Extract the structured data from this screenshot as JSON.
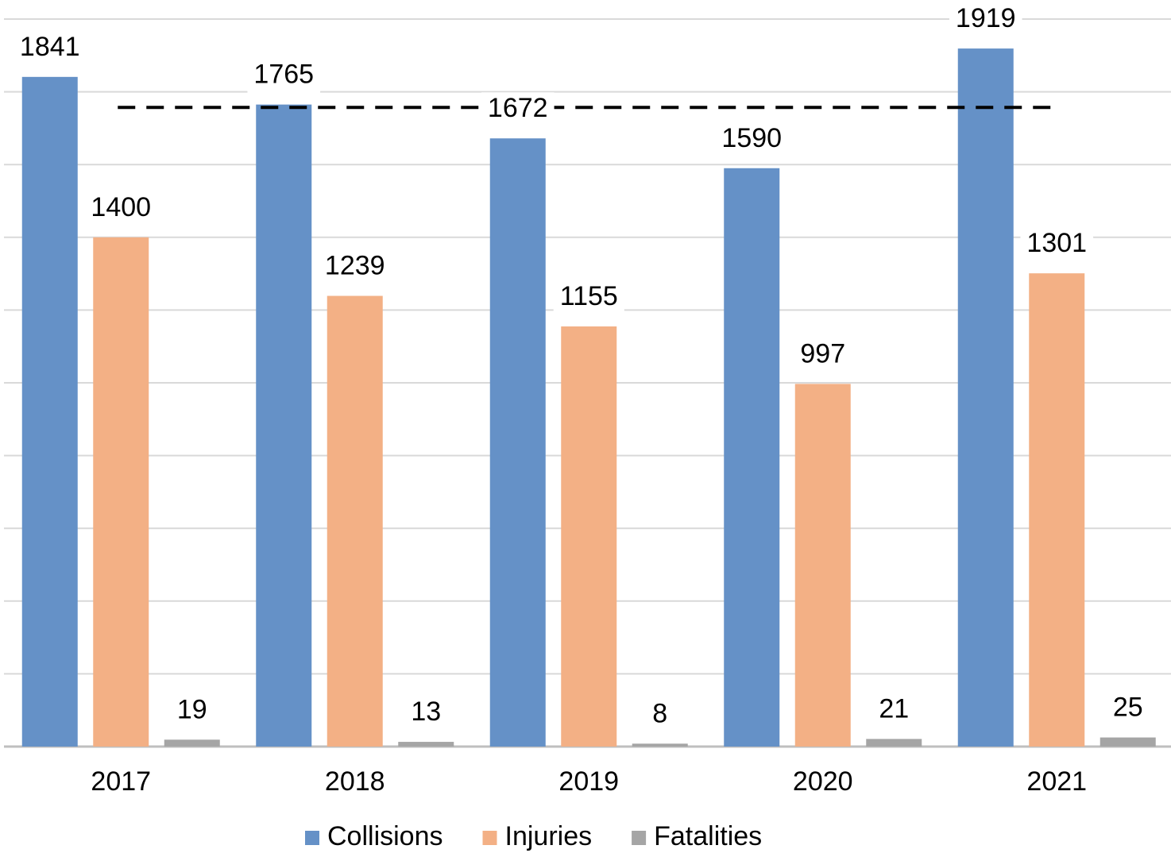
{
  "chart_data": {
    "type": "bar",
    "categories": [
      "2017",
      "2018",
      "2019",
      "2020",
      "2021"
    ],
    "series": [
      {
        "name": "Collisions",
        "color": "#6591c7",
        "values": [
          1841,
          1765,
          1672,
          1590,
          1919
        ]
      },
      {
        "name": "Injuries",
        "color": "#f3b085",
        "values": [
          1400,
          1239,
          1155,
          997,
          1301
        ]
      },
      {
        "name": "Fatalities",
        "color": "#a5a5a5",
        "values": [
          19,
          13,
          8,
          21,
          25
        ]
      }
    ],
    "ylim": [
      0,
      2000
    ],
    "yticks": [
      0,
      200,
      400,
      600,
      800,
      1000,
      1200,
      1400,
      1600,
      1800,
      2000
    ],
    "grid": true,
    "legend": "bottom",
    "reference_line": {
      "value": 1757,
      "style": "dashed",
      "color": "#000000"
    }
  }
}
